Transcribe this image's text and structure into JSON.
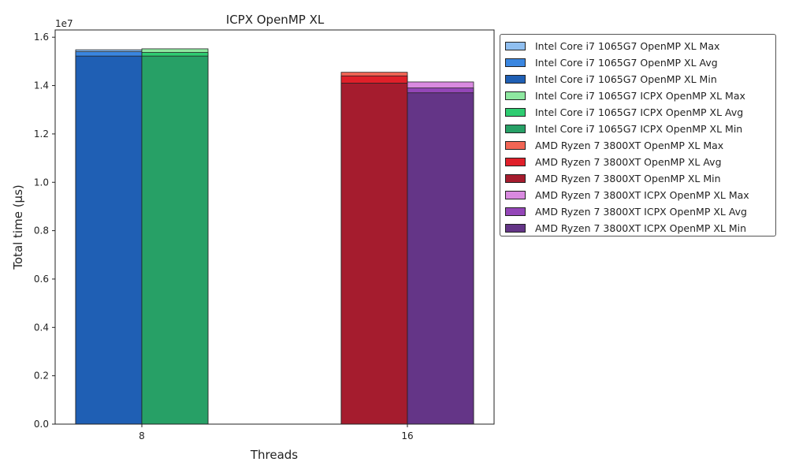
{
  "chart_data": {
    "type": "bar",
    "title": "ICPX OpenMP XL",
    "xlabel": "Threads",
    "ylabel": "Total time (µs)",
    "y_scale_label": "1e7",
    "categories": [
      "8",
      "16"
    ],
    "ylim": [
      0,
      16300000
    ],
    "yticks": [
      0,
      2000000,
      4000000,
      6000000,
      8000000,
      10000000,
      12000000,
      14000000,
      16000000
    ],
    "ytick_labels": [
      "0.0",
      "0.2",
      "0.4",
      "0.6",
      "0.8",
      "1.0",
      "1.2",
      "1.4",
      "1.6"
    ],
    "legend_position": "outside right, top",
    "grid": false,
    "groups": [
      {
        "name": "Intel Core i7 1065G7 OpenMP XL",
        "category": "8",
        "slot": 0,
        "series": [
          {
            "name": "Intel Core i7 1065G7 OpenMP XL Max",
            "value": 15480000,
            "color": "#90bff0"
          },
          {
            "name": "Intel Core i7 1065G7 OpenMP XL Avg",
            "value": 15400000,
            "color": "#3a86e0"
          },
          {
            "name": "Intel Core i7 1065G7 OpenMP XL Min",
            "value": 15220000,
            "color": "#1f5fb4"
          }
        ]
      },
      {
        "name": "Intel Core i7 1065G7 ICPX OpenMP XL",
        "category": "8",
        "slot": 1,
        "series": [
          {
            "name": "Intel Core i7 1065G7 ICPX OpenMP XL Max",
            "value": 15520000,
            "color": "#8ee8a0"
          },
          {
            "name": "Intel Core i7 1065G7 ICPX OpenMP XL Avg",
            "value": 15370000,
            "color": "#2ecc71"
          },
          {
            "name": "Intel Core i7 1065G7 ICPX OpenMP XL Min",
            "value": 15220000,
            "color": "#27a066"
          }
        ]
      },
      {
        "name": "AMD Ryzen 7 3800XT OpenMP XL",
        "category": "16",
        "slot": 0,
        "series": [
          {
            "name": "AMD Ryzen 7 3800XT OpenMP XL Max",
            "value": 14550000,
            "color": "#f26555"
          },
          {
            "name": "AMD Ryzen 7 3800XT OpenMP XL Avg",
            "value": 14400000,
            "color": "#e0202a"
          },
          {
            "name": "AMD Ryzen 7 3800XT OpenMP XL Min",
            "value": 14100000,
            "color": "#a51c2e"
          }
        ]
      },
      {
        "name": "AMD Ryzen 7 3800XT ICPX OpenMP XL",
        "category": "16",
        "slot": 1,
        "series": [
          {
            "name": "AMD Ryzen 7 3800XT ICPX OpenMP XL Max",
            "value": 14150000,
            "color": "#d98ae0"
          },
          {
            "name": "AMD Ryzen 7 3800XT ICPX OpenMP XL Avg",
            "value": 13900000,
            "color": "#9446b8"
          },
          {
            "name": "AMD Ryzen 7 3800XT ICPX OpenMP XL Min",
            "value": 13700000,
            "color": "#643587"
          }
        ]
      }
    ]
  }
}
